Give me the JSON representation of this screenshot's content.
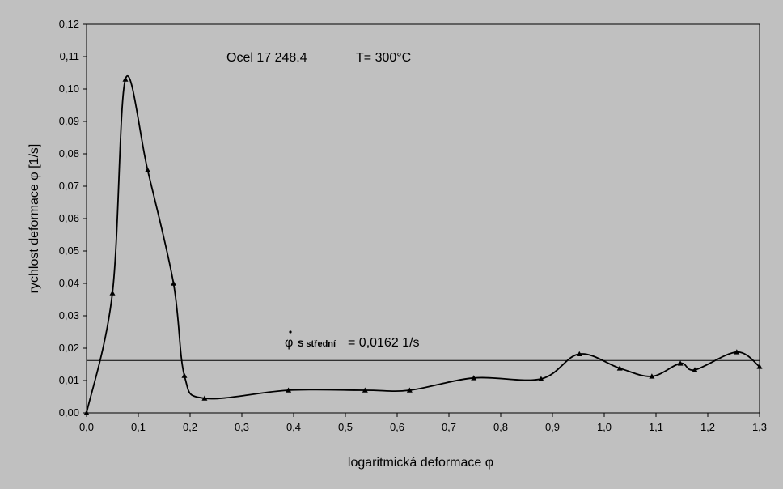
{
  "chart_data": {
    "type": "line",
    "title_material": "Ocel 17 248.4",
    "title_temp": "T= 300°C",
    "xlabel": "logaritmická deformace  φ",
    "ylabel": "rychlost deformace  φ   [1/s]",
    "xlim": [
      0,
      1.3
    ],
    "ylim": [
      0,
      0.12
    ],
    "xticks": [
      "0,0",
      "0,1",
      "0,2",
      "0,3",
      "0,4",
      "0,5",
      "0,6",
      "0,7",
      "0,8",
      "0,9",
      "1,0",
      "1,1",
      "1,2",
      "1,3"
    ],
    "yticks": [
      "0,00",
      "0,01",
      "0,02",
      "0,03",
      "0,04",
      "0,05",
      "0,06",
      "0,07",
      "0,08",
      "0,09",
      "0,10",
      "0,11",
      "0,12"
    ],
    "grid": false,
    "series": [
      {
        "marker": "triangle",
        "color": "#000000",
        "x": [
          0.0,
          0.05,
          0.075,
          0.118,
          0.168,
          0.189,
          0.228,
          0.39,
          0.538,
          0.624,
          0.748,
          0.878,
          0.952,
          1.03,
          1.092,
          1.147,
          1.175,
          1.256,
          1.3
        ],
        "y": [
          0.0,
          0.037,
          0.103,
          0.075,
          0.04,
          0.0115,
          0.0045,
          0.007,
          0.007,
          0.007,
          0.0108,
          0.0105,
          0.0182,
          0.0138,
          0.0113,
          0.0153,
          0.0133,
          0.0188,
          0.0143
        ]
      }
    ],
    "reference_line": {
      "value": 0.0162,
      "label_symbol": "φ",
      "label_sub": "S střední",
      "label_text": "= 0,0162  1/s"
    }
  }
}
